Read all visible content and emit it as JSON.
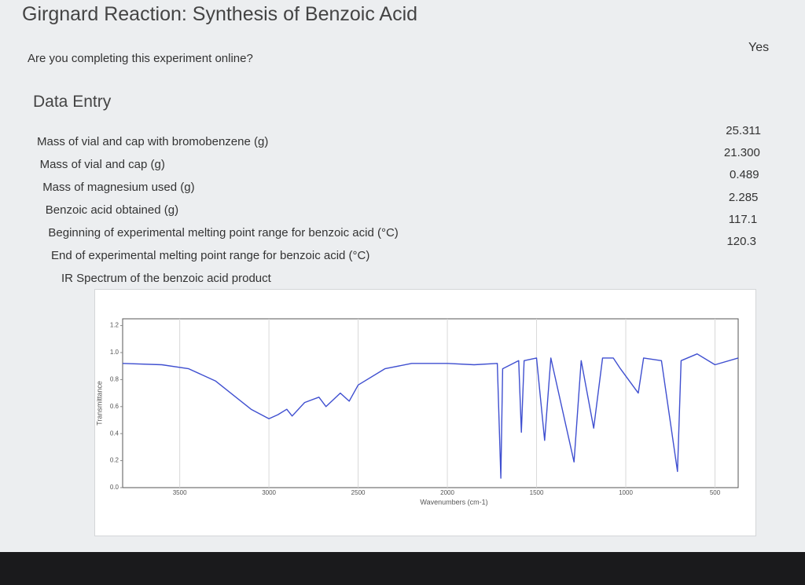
{
  "header": {
    "title": "Girgnard Reaction: Synthesis of Benzoic Acid"
  },
  "question": {
    "label": "Are you completing this experiment online?",
    "answer": "Yes"
  },
  "section": {
    "title": "Data Entry",
    "rows": [
      {
        "label": "Mass of vial and cap with bromobenzene (g)",
        "value": "25.311"
      },
      {
        "label": "Mass of vial and cap (g)",
        "value": "21.300"
      },
      {
        "label": "Mass of magnesium used (g)",
        "value": "0.489"
      },
      {
        "label": "Benzoic acid obtained (g)",
        "value": "2.285"
      },
      {
        "label": "Beginning of experimental melting point range for benzoic acid (°C)",
        "value": "117.1"
      },
      {
        "label": "End of experimental melting point range for benzoic acid (°C)",
        "value": "120.3"
      }
    ]
  },
  "ir_spectrum": {
    "caption": "IR Spectrum of the benzoic acid product"
  },
  "chart_data": {
    "type": "line",
    "xlabel": "Wavenumbers (cm-1)",
    "ylabel": "Transmittance",
    "color": "#3f4fd0",
    "grid": true,
    "xlim": [
      3820,
      370
    ],
    "ylim": [
      0,
      1.25
    ],
    "xticks": [
      3500,
      3000,
      2500,
      2000,
      1500,
      1000,
      500
    ],
    "yticks": [
      {
        "value": 0,
        "label": "0.0"
      },
      0.2,
      0.4,
      0.6,
      0.8,
      {
        "value": 1,
        "label": "1.0"
      },
      1.2
    ],
    "x": [
      3820,
      3600,
      3450,
      3300,
      3100,
      3000,
      2950,
      2900,
      2870,
      2800,
      2720,
      2680,
      2600,
      2550,
      2500,
      2350,
      2200,
      2000,
      1850,
      1720,
      1700,
      1690,
      1600,
      1585,
      1570,
      1500,
      1455,
      1420,
      1290,
      1250,
      1180,
      1130,
      1070,
      1030,
      930,
      900,
      800,
      710,
      690,
      600,
      500,
      370
    ],
    "values": [
      0.92,
      0.91,
      0.88,
      0.79,
      0.58,
      0.51,
      0.54,
      0.58,
      0.53,
      0.63,
      0.67,
      0.6,
      0.7,
      0.64,
      0.76,
      0.88,
      0.92,
      0.92,
      0.91,
      0.92,
      0.07,
      0.88,
      0.94,
      0.41,
      0.94,
      0.96,
      0.35,
      0.96,
      0.19,
      0.94,
      0.44,
      0.96,
      0.96,
      0.88,
      0.7,
      0.96,
      0.94,
      0.12,
      0.94,
      0.99,
      0.91,
      0.96
    ]
  }
}
